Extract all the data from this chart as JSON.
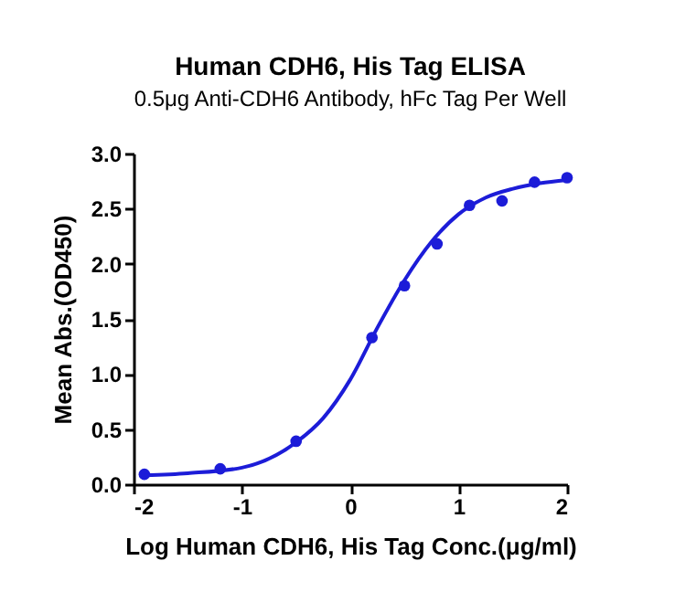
{
  "chart_data": {
    "type": "scatter",
    "title": "Human CDH6, His Tag ELISA",
    "subtitle": "0.5μg Anti-CDH6 Antibody, hFc Tag Per Well",
    "xlabel": "Log Human CDH6, His Tag Conc.(μg/ml)",
    "ylabel": "Mean Abs.(OD450)",
    "xlim": [
      -2,
      2
    ],
    "xticks": [
      -2,
      -1,
      0,
      1,
      2
    ],
    "ylim": [
      0,
      3
    ],
    "yticks": [
      {
        "value": 0,
        "label": "0.0"
      },
      0.5,
      {
        "value": 1,
        "label": "1.0"
      },
      1.5,
      {
        "value": 2,
        "label": "2.0"
      },
      2.5,
      {
        "value": 3,
        "label": "3.0"
      }
    ],
    "grid": false,
    "series": [
      {
        "marker": "circle",
        "color": "#1c1cd8",
        "x": [
          -1.9,
          -1.2,
          -0.5,
          0.2,
          0.5,
          0.8,
          1.1,
          1.4,
          1.7,
          2.0
        ],
        "values": [
          0.09,
          0.14,
          0.39,
          1.33,
          1.8,
          2.18,
          2.53,
          2.57,
          2.74,
          2.78
        ]
      },
      {
        "type": "line",
        "color": "#1c1cd8",
        "x": [
          -1.9,
          -1.5,
          -1,
          -0.5,
          -0.25,
          0,
          0.25,
          0.5,
          0.75,
          1,
          1.25,
          1.5,
          1.75,
          2
        ],
        "values": [
          0.08,
          0.1,
          0.15,
          0.38,
          0.6,
          0.95,
          1.42,
          1.85,
          2.2,
          2.45,
          2.6,
          2.68,
          2.73,
          2.76
        ]
      }
    ]
  }
}
